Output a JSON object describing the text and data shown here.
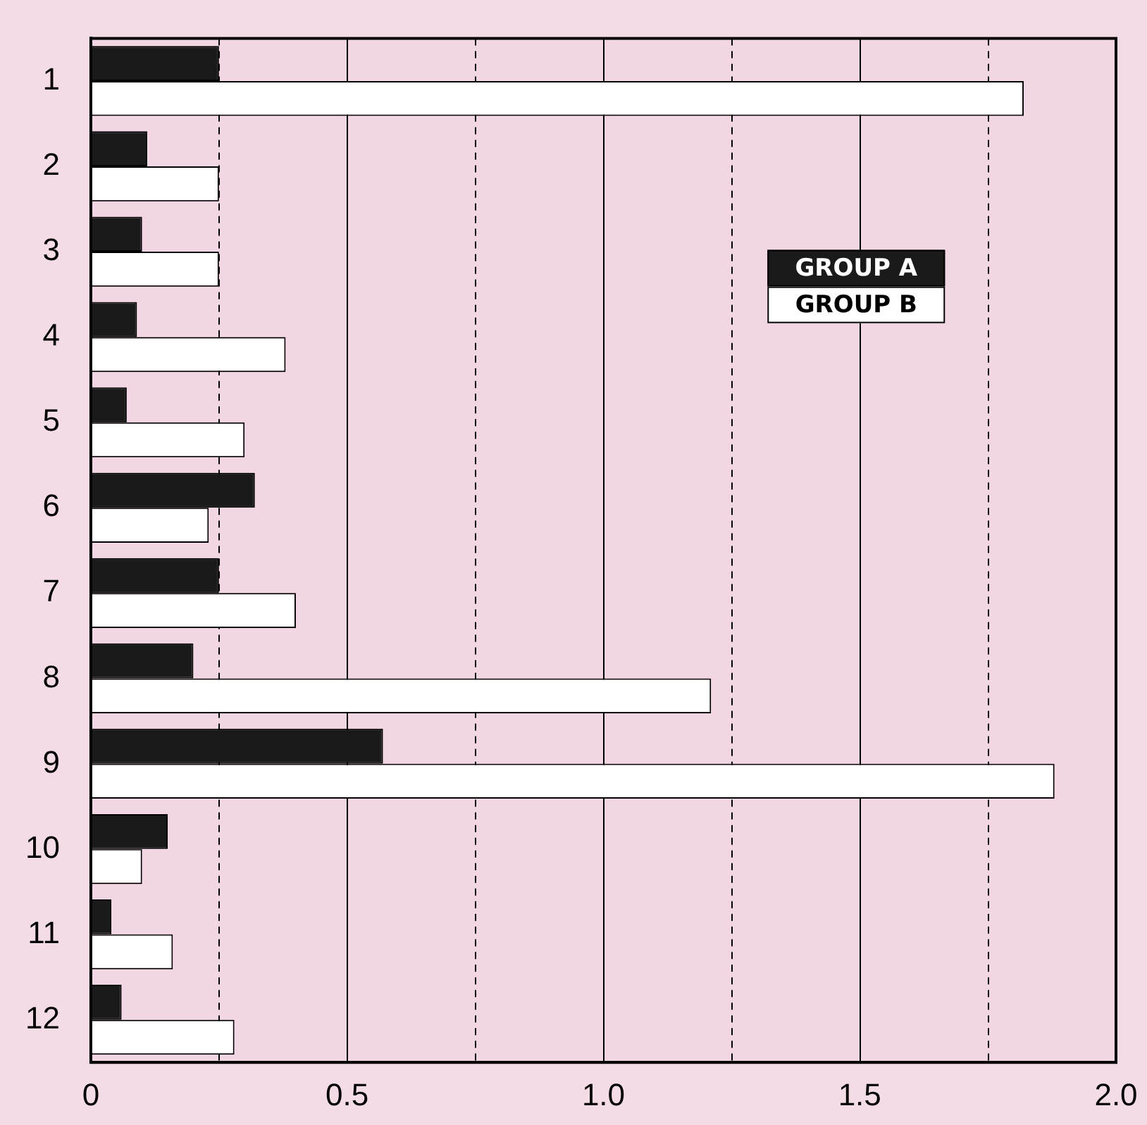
{
  "chart_data": {
    "type": "bar",
    "orientation": "horizontal",
    "categories": [
      "1",
      "2",
      "3",
      "4",
      "5",
      "6",
      "7",
      "8",
      "9",
      "10",
      "11",
      "12"
    ],
    "series": [
      {
        "name": "GROUP A",
        "color": "#1a1a1a",
        "values": [
          0.25,
          0.11,
          0.1,
          0.09,
          0.07,
          0.32,
          0.25,
          0.2,
          0.57,
          0.15,
          0.04,
          0.06
        ]
      },
      {
        "name": "GROUP B",
        "color": "#ffffff",
        "values": [
          1.82,
          0.25,
          0.25,
          0.38,
          0.3,
          0.23,
          0.4,
          1.21,
          1.88,
          0.1,
          0.16,
          0.28
        ]
      }
    ],
    "xlim": [
      0,
      2
    ],
    "xticks": [
      0,
      {
        "value": 0.25,
        "label": null
      },
      {
        "value": 0.5,
        "label": "0.5"
      },
      {
        "value": 0.75,
        "label": null
      },
      {
        "value": 1,
        "label": "1.0"
      },
      {
        "value": 1.25,
        "label": null
      },
      {
        "value": 1.5,
        "label": "1.5"
      },
      {
        "value": 1.75,
        "label": null
      },
      {
        "value": 2,
        "label": "2.0"
      }
    ],
    "grid": "x",
    "legend": "top right"
  }
}
